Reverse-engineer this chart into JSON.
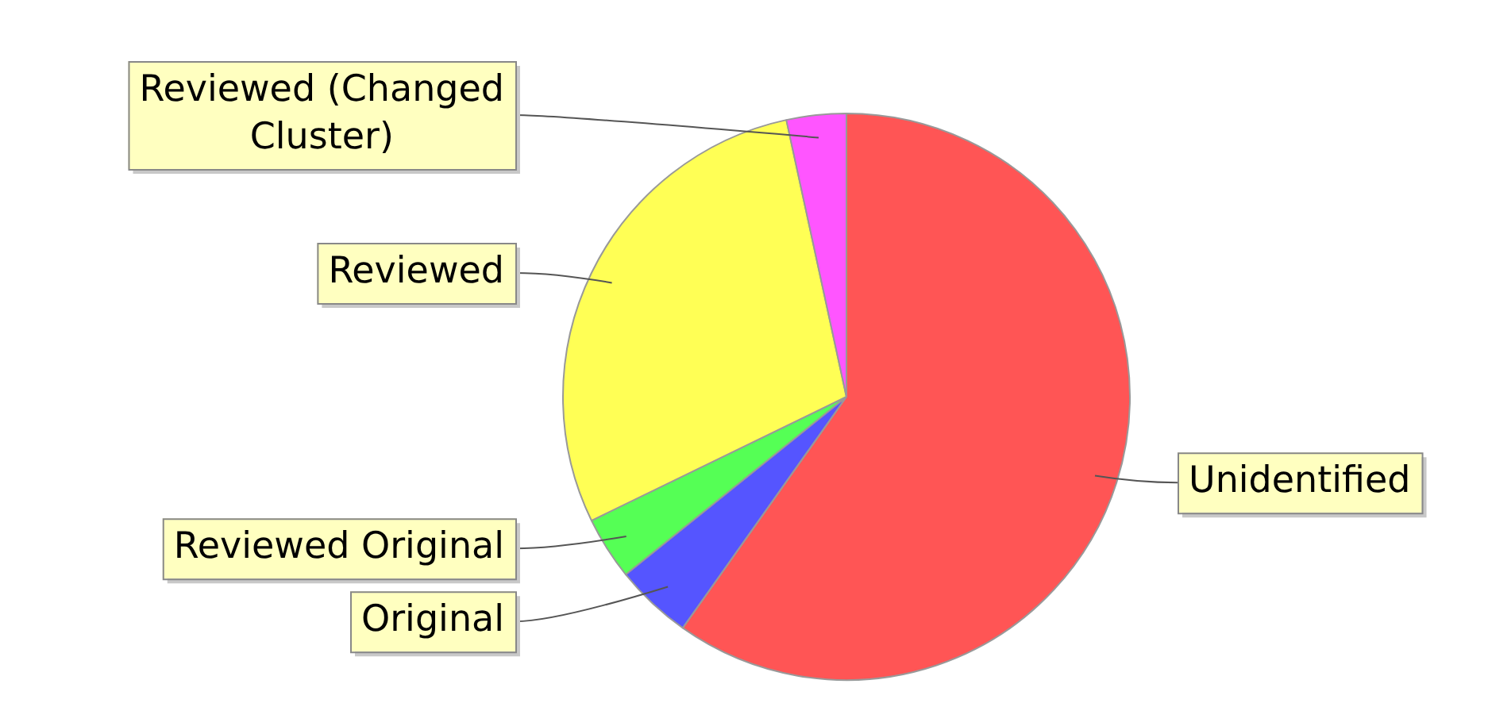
{
  "chart_data": {
    "type": "pie",
    "categories": [
      "Unidentified",
      "Original",
      "Reviewed Original",
      "Reviewed",
      "Reviewed (Changed Cluster)"
    ],
    "values": [
      59.8,
      4.4,
      3.6,
      28.8,
      3.4
    ],
    "colors": [
      "#ff5555",
      "#5555ff",
      "#55ff55",
      "#ffff55",
      "#ff55ff"
    ]
  }
}
